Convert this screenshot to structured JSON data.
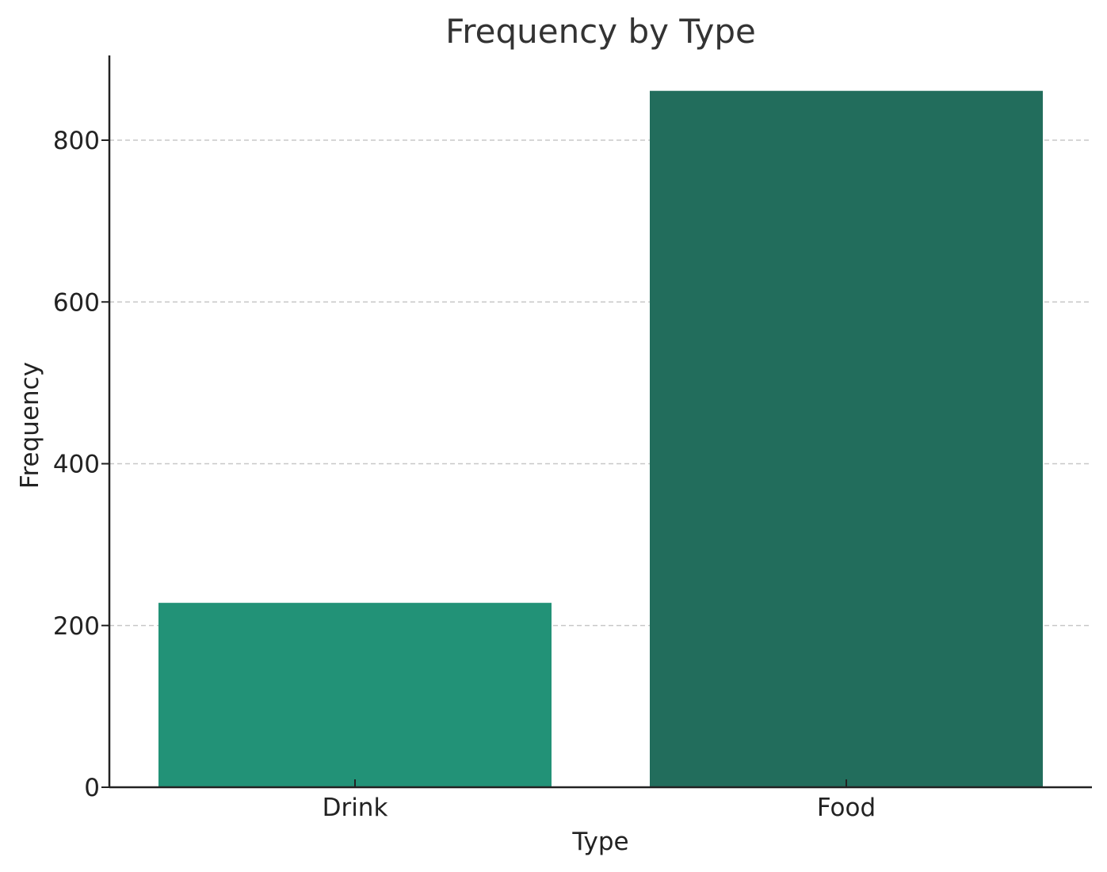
{
  "chart_data": {
    "type": "bar",
    "title": "Frequency by Type",
    "xlabel": "Type",
    "ylabel": "Frequency",
    "categories": [
      "Drink",
      "Food"
    ],
    "values": [
      228,
      861
    ],
    "colors": [
      "#229277",
      "#226d5c"
    ],
    "ylim": [
      0,
      900
    ],
    "yticks": [
      0,
      200,
      400,
      600,
      800
    ],
    "ytick_labels": [
      "0",
      "200",
      "400",
      "600",
      "800"
    ],
    "grid": "y-dashed",
    "legend": "none"
  }
}
